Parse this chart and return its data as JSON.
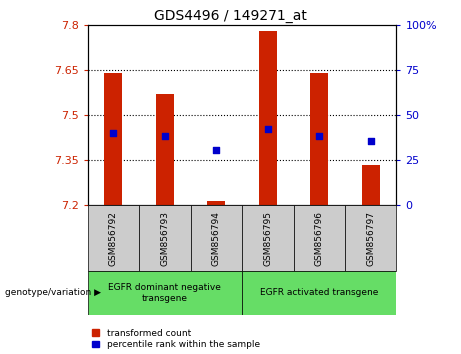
{
  "title": "GDS4496 / 149271_at",
  "samples": [
    "GSM856792",
    "GSM856793",
    "GSM856794",
    "GSM856795",
    "GSM856796",
    "GSM856797"
  ],
  "bar_tops": [
    7.64,
    7.57,
    7.215,
    7.78,
    7.64,
    7.335
  ],
  "bar_bottom": 7.2,
  "blue_vals": [
    7.44,
    7.43,
    7.385,
    7.455,
    7.43,
    7.415
  ],
  "left_ylim": [
    7.2,
    7.8
  ],
  "left_yticks": [
    7.2,
    7.35,
    7.5,
    7.65,
    7.8
  ],
  "right_ylim": [
    0,
    100
  ],
  "right_yticks": [
    0,
    25,
    50,
    75,
    100
  ],
  "right_yticklabels": [
    "0",
    "25",
    "50",
    "75",
    "100%"
  ],
  "bar_color": "#cc2200",
  "blue_color": "#0000cc",
  "group1_label": "EGFR dominant negative\ntransgene",
  "group2_label": "EGFR activated transgene",
  "group_bg": "#66dd66",
  "sample_bg": "#cccccc",
  "legend_red_label": "transformed count",
  "legend_blue_label": "percentile rank within the sample",
  "xlabel_left": "genotype/variation ▶",
  "bar_width": 0.35
}
